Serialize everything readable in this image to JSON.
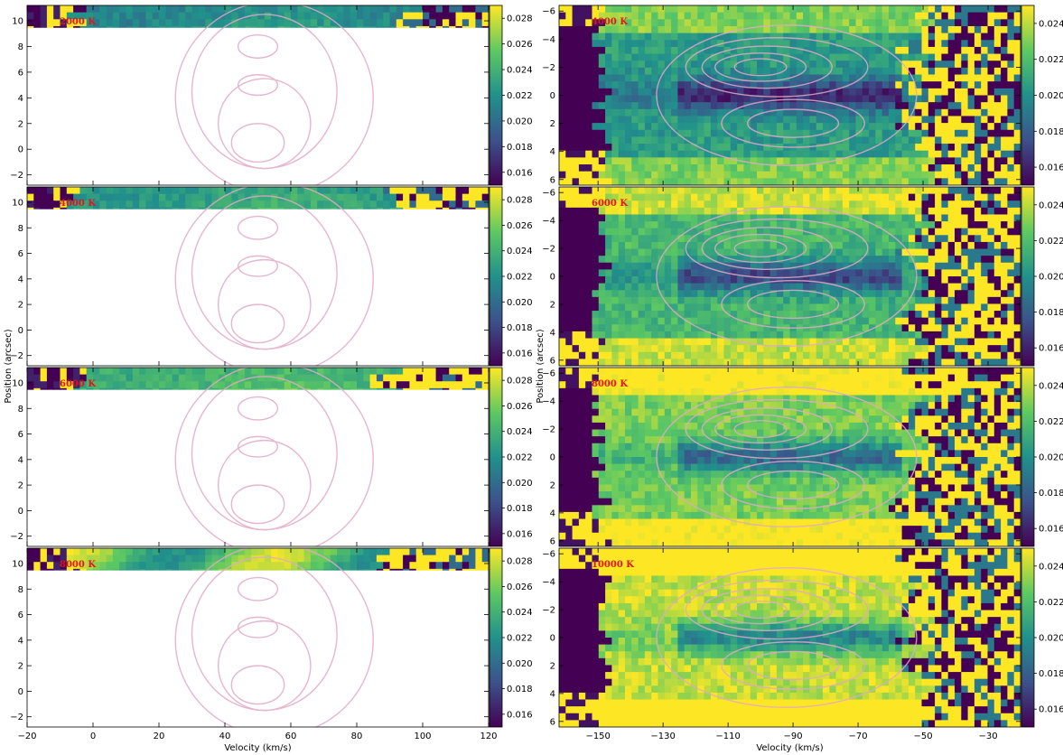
{
  "chart_data": {
    "type": "heatmap",
    "colormap": "viridis",
    "contour_color": "#e2a9c6",
    "label_color": "#e0141b",
    "panels_left": {
      "xlabel": "Velocity (km/s)",
      "ylabel": "Position (arcsec)",
      "xlim": [
        -20,
        120
      ],
      "ylim": [
        11.2,
        -2.8
      ],
      "xticks": [
        -20,
        0,
        20,
        40,
        60,
        80,
        100,
        120
      ],
      "yticks": [
        -2,
        0,
        2,
        4,
        6,
        8,
        10
      ],
      "colorbar": {
        "range": [
          0.015,
          0.029
        ],
        "ticks": [
          "0.016",
          "0.018",
          "0.020",
          "0.022",
          "0.024",
          "0.026",
          "0.028"
        ]
      },
      "panels": [
        {
          "temperature": "2000 K"
        },
        {
          "temperature": "4000 K"
        },
        {
          "temperature": "6000 K"
        },
        {
          "temperature": "8000 K"
        }
      ]
    },
    "panels_right": {
      "xlabel": "Velocity (km/s)",
      "ylabel": "Position (arcsec)",
      "xlim": [
        -162,
        -20
      ],
      "ylim": [
        -6.4,
        6.4
      ],
      "xticks": [
        -150,
        -130,
        -110,
        -90,
        -70,
        -50,
        -30
      ],
      "yticks": [
        -6,
        -4,
        -2,
        0,
        2,
        4,
        6
      ],
      "colorbar": {
        "range": [
          0.015,
          0.025
        ],
        "ticks": [
          "0.016",
          "0.018",
          "0.020",
          "0.022",
          "0.024"
        ]
      },
      "panels": [
        {
          "temperature": "4000 K"
        },
        {
          "temperature": "6000 K"
        },
        {
          "temperature": "8000 K"
        },
        {
          "temperature": "10000 K"
        }
      ]
    }
  }
}
